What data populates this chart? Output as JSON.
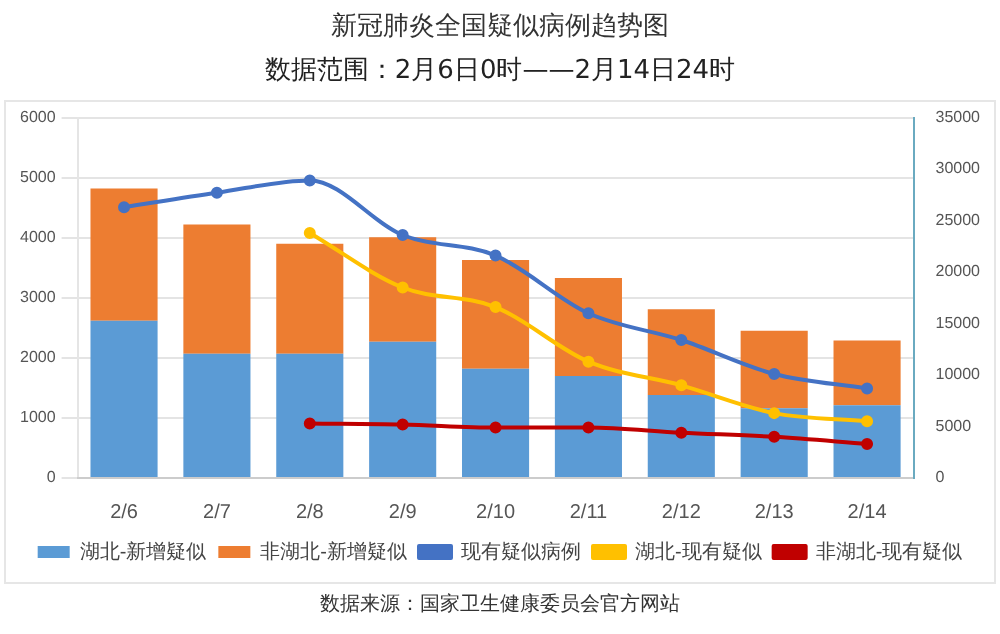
{
  "chart_data": {
    "type": "bar",
    "title": "新冠肺炎全国疑似病例趋势图",
    "subtitle": "数据范围：2月6日0时——2月14日24时",
    "categories": [
      "2/6",
      "2/7",
      "2/8",
      "2/9",
      "2/10",
      "2/11",
      "2/12",
      "2/13",
      "2/14"
    ],
    "stacked": true,
    "series": [
      {
        "name": "湖北-新增疑似",
        "color": "#5b9bd5",
        "values": [
          2620,
          2070,
          2070,
          2270,
          1820,
          1700,
          1380,
          1160,
          1210
        ]
      },
      {
        "name": "非湖北-新增疑似",
        "color": "#ed7d31",
        "values": [
          2200,
          2150,
          1830,
          1740,
          1810,
          1630,
          1430,
          1290,
          1080
        ]
      },
      {
        "name": "现有疑似病例",
        "type": "line",
        "axis": "y2",
        "color": "#4472c4",
        "values": [
          26300,
          27700,
          28900,
          23600,
          21600,
          16000,
          13400,
          10100,
          8700
        ]
      },
      {
        "name": "湖北-现有疑似",
        "type": "line",
        "axis": "y2",
        "color": "#ffc000",
        "values": [
          null,
          null,
          23800,
          18500,
          16600,
          11300,
          9000,
          6300,
          5500
        ]
      },
      {
        "name": "非湖北-现有疑似",
        "type": "line",
        "axis": "y2",
        "color": "#c00000",
        "values": [
          null,
          null,
          5300,
          5200,
          4900,
          4900,
          4400,
          4000,
          3300
        ]
      }
    ],
    "ylim": [
      0,
      6000
    ],
    "yticks": [
      0,
      1000,
      2000,
      3000,
      4000,
      5000,
      6000
    ],
    "y2lim": [
      0,
      35000
    ],
    "y2ticks": [
      0,
      5000,
      10000,
      15000,
      20000,
      25000,
      30000,
      35000
    ],
    "grid": "y",
    "legend": "bottom",
    "marker": "circle",
    "annotations": [
      "数据来源：国家卫生健康委员会官方网站"
    ]
  }
}
